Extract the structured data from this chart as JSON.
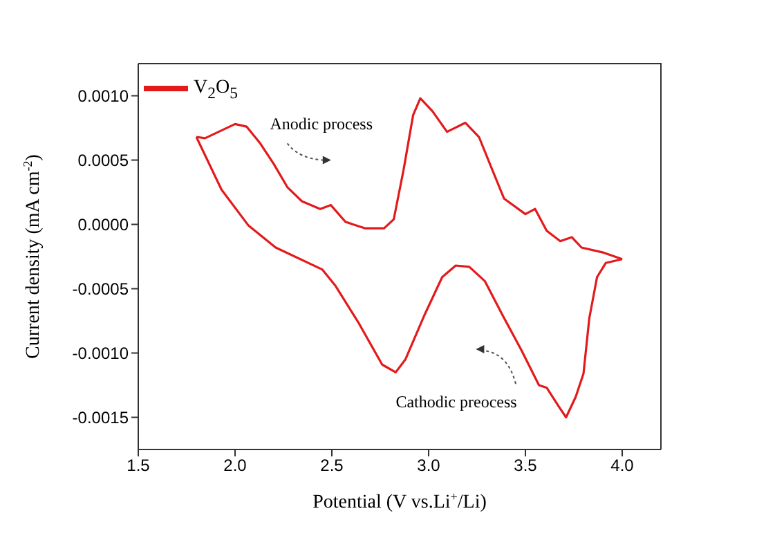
{
  "chart_data": {
    "type": "line",
    "xlabel": "Potential (V vs.Li$^{+}$/Li)",
    "ylabel": "Current density (mA cm$^{-2}$)",
    "xlim": [
      1.5,
      4.2
    ],
    "xticks": [
      {
        "value": 1.5,
        "label": "1.5"
      },
      {
        "value": 2,
        "label": "2.0"
      },
      {
        "value": 2.5,
        "label": "2.5"
      },
      {
        "value": 3,
        "label": "3.0"
      },
      {
        "value": 3.5,
        "label": "3.5"
      },
      {
        "value": 4,
        "label": "4.0"
      }
    ],
    "ylim": [
      -0.00175,
      0.00125
    ],
    "yticks": [
      {
        "value": -0.0015,
        "label": "-0.0015"
      },
      {
        "value": -0.001,
        "label": "-0.0010"
      },
      {
        "value": -0.0005,
        "label": "-0.0005"
      },
      {
        "value": 0,
        "label": "0.0000"
      },
      {
        "value": 0.0005,
        "label": "0.0005"
      },
      {
        "value": 0.001,
        "label": "0.0010"
      }
    ],
    "grid": false,
    "legend": "top left",
    "marker": "none",
    "line_style": "solid",
    "annotations": [
      "Anodic process",
      "Cathodic preocess"
    ],
    "series": [
      {
        "name": "V$_{2}$O$_{5}$",
        "color": "#e31a1c",
        "x": [
          1.8,
          1.845,
          2.0,
          2.06,
          2.13,
          2.2,
          2.27,
          2.345,
          2.44,
          2.495,
          2.57,
          2.67,
          2.77,
          2.82,
          2.87,
          2.92,
          2.957,
          3.02,
          3.095,
          3.19,
          3.26,
          3.33,
          3.39,
          3.5,
          3.55,
          3.61,
          3.68,
          3.74,
          3.79,
          3.905,
          4.0
        ],
        "values": [
          0.00068,
          0.00067,
          0.00078,
          0.00076,
          0.00063,
          0.00047,
          0.00029,
          0.00018,
          0.00012,
          0.00015,
          2e-05,
          -3e-05,
          -3e-05,
          4e-05,
          0.00042,
          0.00085,
          0.00098,
          0.00088,
          0.00072,
          0.00079,
          0.00068,
          0.00042,
          0.0002,
          8e-05,
          0.00012,
          -5e-05,
          -0.00013,
          -0.0001,
          -0.00018,
          -0.00022,
          -0.00027
        ]
      },
      {
        "color": "#e31a1c",
        "x": [
          1.8,
          1.93,
          2.07,
          2.21,
          2.45,
          2.52,
          2.64,
          2.76,
          2.83,
          2.88,
          2.98,
          3.07,
          3.14,
          3.21,
          3.29,
          3.38,
          3.48,
          3.57,
          3.61,
          3.67,
          3.71,
          3.76,
          3.8,
          3.83,
          3.87,
          3.915,
          4.0
        ],
        "values": [
          0.00068,
          0.00027,
          -1e-05,
          -0.00018,
          -0.00035,
          -0.00048,
          -0.00077,
          -0.00109,
          -0.00115,
          -0.00105,
          -0.0007,
          -0.00041,
          -0.00032,
          -0.00033,
          -0.00044,
          -0.0007,
          -0.00098,
          -0.00125,
          -0.00127,
          -0.00141,
          -0.0015,
          -0.00134,
          -0.00116,
          -0.00073,
          -0.00041,
          -0.0003,
          -0.00027
        ]
      }
    ]
  }
}
